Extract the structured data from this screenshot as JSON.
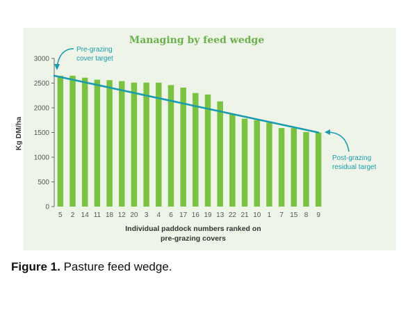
{
  "chart_data": {
    "type": "bar",
    "title": "Managing by feed wedge",
    "ylabel": "Kg DM/ha",
    "xlabel_lines": [
      "Individual paddock numbers ranked on",
      "pre-grazing covers"
    ],
    "ylim": [
      0,
      3000
    ],
    "yticks": [
      0,
      500,
      1000,
      1500,
      2000,
      2500,
      3000
    ],
    "categories": [
      "5",
      "2",
      "14",
      "11",
      "18",
      "12",
      "20",
      "3",
      "4",
      "6",
      "17",
      "16",
      "19",
      "13",
      "22",
      "21",
      "10",
      "1",
      "7",
      "15",
      "8",
      "9"
    ],
    "values": [
      2650,
      2650,
      2610,
      2570,
      2560,
      2540,
      2510,
      2510,
      2510,
      2460,
      2410,
      2300,
      2270,
      2130,
      1870,
      1780,
      1750,
      1700,
      1590,
      1590,
      1510,
      1500
    ],
    "target_line": {
      "start": 2650,
      "end": 1500
    },
    "grid": false,
    "annotations": [
      {
        "lines": [
          "Pre-grazing",
          "cover target"
        ]
      },
      {
        "lines": [
          "Post-grazing",
          "residual target"
        ]
      }
    ],
    "colors": {
      "bar": "#7cc242",
      "target_line": "#1a9bb0",
      "title": "#6ab04c",
      "annotation": "#1a9bb0",
      "panel": "#eef5e8"
    }
  },
  "caption": {
    "label": "Figure 1.",
    "text": " Pasture feed wedge."
  }
}
